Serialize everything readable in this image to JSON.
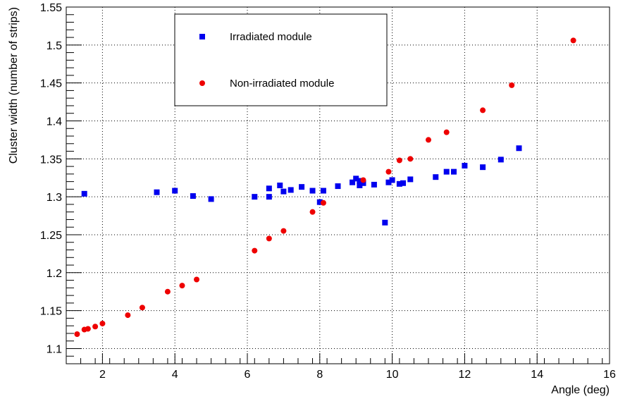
{
  "chart_data": {
    "type": "scatter",
    "xlabel": "Angle (deg)",
    "ylabel": "Cluster width (number of strips)",
    "xlim": [
      1.0,
      16.0
    ],
    "ylim": [
      1.08,
      1.55
    ],
    "xticks": [
      2,
      4,
      6,
      8,
      10,
      12,
      14,
      16
    ],
    "xtick_labels": [
      "2",
      "4",
      "6",
      "8",
      "10",
      "12",
      "14",
      "16"
    ],
    "yticks": [
      1.1,
      1.15,
      1.2,
      1.25,
      1.3,
      1.35,
      1.4,
      1.45,
      1.5,
      1.55
    ],
    "ytick_labels": [
      "1.1",
      "1.15",
      "1.2",
      "1.25",
      "1.3",
      "1.35",
      "1.4",
      "1.45",
      "1.5",
      "1.55"
    ],
    "grid": true,
    "legend_position": "top-center",
    "series": [
      {
        "name": "Irradiated module",
        "marker": "square",
        "color": "#0000ee",
        "points": [
          [
            1.5,
            1.304
          ],
          [
            3.5,
            1.306
          ],
          [
            4.0,
            1.308
          ],
          [
            4.5,
            1.301
          ],
          [
            5.0,
            1.297
          ],
          [
            6.2,
            1.3
          ],
          [
            6.6,
            1.311
          ],
          [
            6.6,
            1.3
          ],
          [
            6.9,
            1.315
          ],
          [
            7.0,
            1.307
          ],
          [
            7.2,
            1.309
          ],
          [
            7.5,
            1.313
          ],
          [
            7.8,
            1.308
          ],
          [
            8.0,
            1.293
          ],
          [
            8.1,
            1.308
          ],
          [
            8.5,
            1.314
          ],
          [
            8.9,
            1.319
          ],
          [
            9.0,
            1.324
          ],
          [
            9.1,
            1.321
          ],
          [
            9.1,
            1.315
          ],
          [
            9.2,
            1.318
          ],
          [
            9.5,
            1.316
          ],
          [
            9.8,
            1.266
          ],
          [
            9.9,
            1.319
          ],
          [
            10.0,
            1.322
          ],
          [
            10.2,
            1.317
          ],
          [
            10.3,
            1.318
          ],
          [
            10.5,
            1.323
          ],
          [
            11.2,
            1.326
          ],
          [
            11.5,
            1.333
          ],
          [
            11.7,
            1.333
          ],
          [
            12.0,
            1.341
          ],
          [
            12.5,
            1.339
          ],
          [
            13.0,
            1.349
          ],
          [
            13.5,
            1.364
          ]
        ]
      },
      {
        "name": "Non-irradiated module",
        "marker": "circle",
        "color": "#ee0000",
        "points": [
          [
            1.3,
            1.119
          ],
          [
            1.5,
            1.125
          ],
          [
            1.6,
            1.126
          ],
          [
            1.8,
            1.129
          ],
          [
            2.0,
            1.133
          ],
          [
            2.7,
            1.144
          ],
          [
            3.1,
            1.154
          ],
          [
            3.8,
            1.175
          ],
          [
            4.2,
            1.183
          ],
          [
            4.6,
            1.191
          ],
          [
            6.2,
            1.229
          ],
          [
            6.6,
            1.245
          ],
          [
            7.0,
            1.255
          ],
          [
            7.8,
            1.28
          ],
          [
            8.1,
            1.292
          ],
          [
            9.2,
            1.322
          ],
          [
            9.9,
            1.333
          ],
          [
            10.2,
            1.348
          ],
          [
            10.5,
            1.35
          ],
          [
            11.0,
            1.375
          ],
          [
            11.5,
            1.385
          ],
          [
            12.5,
            1.414
          ],
          [
            13.3,
            1.447
          ],
          [
            15.0,
            1.506
          ]
        ]
      }
    ]
  }
}
